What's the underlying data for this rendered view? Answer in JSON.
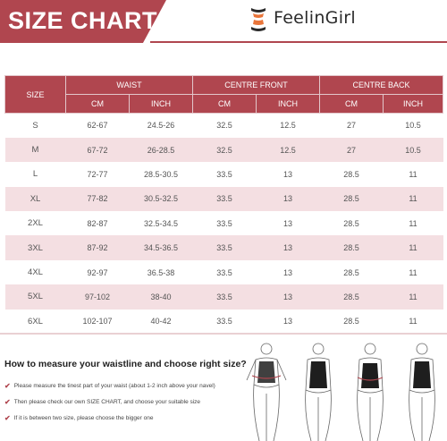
{
  "header": {
    "title": "SIZE CHART",
    "brand": "FeelinGirl",
    "accent_color": "#b0464f",
    "logo_icon": "feelingirl-logo-icon"
  },
  "table": {
    "size_header": "SIZE",
    "groups": [
      "WAIST",
      "CENTRE FRONT",
      "CENTRE BACK"
    ],
    "subheaders": [
      "CM",
      "INCH",
      "CM",
      "INCH",
      "CM",
      "INCH"
    ],
    "rows": [
      [
        "S",
        "62-67",
        "24.5-26",
        "32.5",
        "12.5",
        "27",
        "10.5"
      ],
      [
        "M",
        "67-72",
        "26-28.5",
        "32.5",
        "12.5",
        "27",
        "10.5"
      ],
      [
        "L",
        "72-77",
        "28.5-30.5",
        "33.5",
        "13",
        "28.5",
        "11"
      ],
      [
        "XL",
        "77-82",
        "30.5-32.5",
        "33.5",
        "13",
        "28.5",
        "11"
      ],
      [
        "2XL",
        "82-87",
        "32.5-34.5",
        "33.5",
        "13",
        "28.5",
        "11"
      ],
      [
        "3XL",
        "87-92",
        "34.5-36.5",
        "33.5",
        "13",
        "28.5",
        "11"
      ],
      [
        "4XL",
        "92-97",
        "36.5-38",
        "33.5",
        "13",
        "28.5",
        "11"
      ],
      [
        "5XL",
        "97-102",
        "38-40",
        "33.5",
        "13",
        "28.5",
        "11"
      ],
      [
        "6XL",
        "102-107",
        "40-42",
        "33.5",
        "13",
        "28.5",
        "11"
      ]
    ]
  },
  "guide": {
    "title": "How to measure your waistline and choose right size?",
    "tips": [
      "Please measure the tinest part of your waist (about 1-2 inch above your navel)",
      "Then please check our own SIZE CHART, and choose your suitable size",
      "If it is between two size, please choose the bigger one"
    ],
    "tip_icon": "checkmark-icon"
  }
}
